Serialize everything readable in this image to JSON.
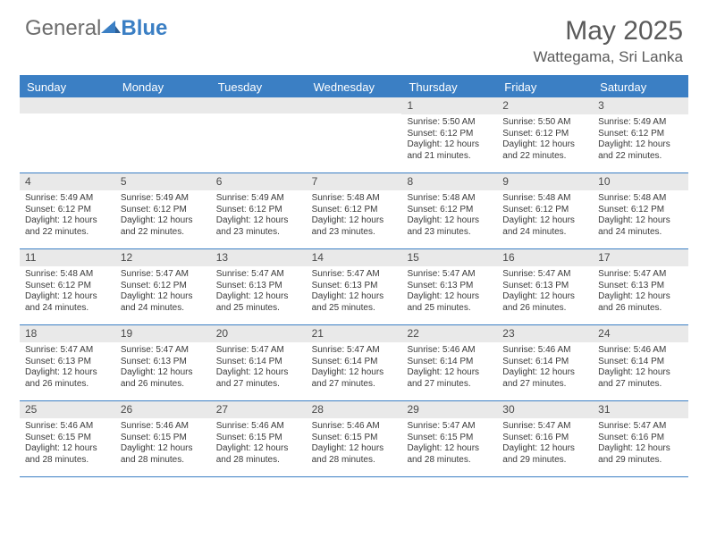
{
  "logo": {
    "general": "General",
    "blue": "Blue"
  },
  "title": "May 2025",
  "location": "Wattegama, Sri Lanka",
  "colors": {
    "accent": "#3b7fc4",
    "header_text": "#5a5a5a",
    "daynum_bg": "#e9e9e9",
    "body_text": "#3a3a3a",
    "logo_gray": "#6d6d6d"
  },
  "day_names": [
    "Sunday",
    "Monday",
    "Tuesday",
    "Wednesday",
    "Thursday",
    "Friday",
    "Saturday"
  ],
  "weeks": [
    [
      {
        "n": "",
        "sunrise": "",
        "sunset": "",
        "daylight": ""
      },
      {
        "n": "",
        "sunrise": "",
        "sunset": "",
        "daylight": ""
      },
      {
        "n": "",
        "sunrise": "",
        "sunset": "",
        "daylight": ""
      },
      {
        "n": "",
        "sunrise": "",
        "sunset": "",
        "daylight": ""
      },
      {
        "n": "1",
        "sunrise": "5:50 AM",
        "sunset": "6:12 PM",
        "daylight": "12 hours and 21 minutes."
      },
      {
        "n": "2",
        "sunrise": "5:50 AM",
        "sunset": "6:12 PM",
        "daylight": "12 hours and 22 minutes."
      },
      {
        "n": "3",
        "sunrise": "5:49 AM",
        "sunset": "6:12 PM",
        "daylight": "12 hours and 22 minutes."
      }
    ],
    [
      {
        "n": "4",
        "sunrise": "5:49 AM",
        "sunset": "6:12 PM",
        "daylight": "12 hours and 22 minutes."
      },
      {
        "n": "5",
        "sunrise": "5:49 AM",
        "sunset": "6:12 PM",
        "daylight": "12 hours and 22 minutes."
      },
      {
        "n": "6",
        "sunrise": "5:49 AM",
        "sunset": "6:12 PM",
        "daylight": "12 hours and 23 minutes."
      },
      {
        "n": "7",
        "sunrise": "5:48 AM",
        "sunset": "6:12 PM",
        "daylight": "12 hours and 23 minutes."
      },
      {
        "n": "8",
        "sunrise": "5:48 AM",
        "sunset": "6:12 PM",
        "daylight": "12 hours and 23 minutes."
      },
      {
        "n": "9",
        "sunrise": "5:48 AM",
        "sunset": "6:12 PM",
        "daylight": "12 hours and 24 minutes."
      },
      {
        "n": "10",
        "sunrise": "5:48 AM",
        "sunset": "6:12 PM",
        "daylight": "12 hours and 24 minutes."
      }
    ],
    [
      {
        "n": "11",
        "sunrise": "5:48 AM",
        "sunset": "6:12 PM",
        "daylight": "12 hours and 24 minutes."
      },
      {
        "n": "12",
        "sunrise": "5:47 AM",
        "sunset": "6:12 PM",
        "daylight": "12 hours and 24 minutes."
      },
      {
        "n": "13",
        "sunrise": "5:47 AM",
        "sunset": "6:13 PM",
        "daylight": "12 hours and 25 minutes."
      },
      {
        "n": "14",
        "sunrise": "5:47 AM",
        "sunset": "6:13 PM",
        "daylight": "12 hours and 25 minutes."
      },
      {
        "n": "15",
        "sunrise": "5:47 AM",
        "sunset": "6:13 PM",
        "daylight": "12 hours and 25 minutes."
      },
      {
        "n": "16",
        "sunrise": "5:47 AM",
        "sunset": "6:13 PM",
        "daylight": "12 hours and 26 minutes."
      },
      {
        "n": "17",
        "sunrise": "5:47 AM",
        "sunset": "6:13 PM",
        "daylight": "12 hours and 26 minutes."
      }
    ],
    [
      {
        "n": "18",
        "sunrise": "5:47 AM",
        "sunset": "6:13 PM",
        "daylight": "12 hours and 26 minutes."
      },
      {
        "n": "19",
        "sunrise": "5:47 AM",
        "sunset": "6:13 PM",
        "daylight": "12 hours and 26 minutes."
      },
      {
        "n": "20",
        "sunrise": "5:47 AM",
        "sunset": "6:14 PM",
        "daylight": "12 hours and 27 minutes."
      },
      {
        "n": "21",
        "sunrise": "5:47 AM",
        "sunset": "6:14 PM",
        "daylight": "12 hours and 27 minutes."
      },
      {
        "n": "22",
        "sunrise": "5:46 AM",
        "sunset": "6:14 PM",
        "daylight": "12 hours and 27 minutes."
      },
      {
        "n": "23",
        "sunrise": "5:46 AM",
        "sunset": "6:14 PM",
        "daylight": "12 hours and 27 minutes."
      },
      {
        "n": "24",
        "sunrise": "5:46 AM",
        "sunset": "6:14 PM",
        "daylight": "12 hours and 27 minutes."
      }
    ],
    [
      {
        "n": "25",
        "sunrise": "5:46 AM",
        "sunset": "6:15 PM",
        "daylight": "12 hours and 28 minutes."
      },
      {
        "n": "26",
        "sunrise": "5:46 AM",
        "sunset": "6:15 PM",
        "daylight": "12 hours and 28 minutes."
      },
      {
        "n": "27",
        "sunrise": "5:46 AM",
        "sunset": "6:15 PM",
        "daylight": "12 hours and 28 minutes."
      },
      {
        "n": "28",
        "sunrise": "5:46 AM",
        "sunset": "6:15 PM",
        "daylight": "12 hours and 28 minutes."
      },
      {
        "n": "29",
        "sunrise": "5:47 AM",
        "sunset": "6:15 PM",
        "daylight": "12 hours and 28 minutes."
      },
      {
        "n": "30",
        "sunrise": "5:47 AM",
        "sunset": "6:16 PM",
        "daylight": "12 hours and 29 minutes."
      },
      {
        "n": "31",
        "sunrise": "5:47 AM",
        "sunset": "6:16 PM",
        "daylight": "12 hours and 29 minutes."
      }
    ]
  ],
  "labels": {
    "sunrise": "Sunrise:",
    "sunset": "Sunset:",
    "daylight": "Daylight:"
  }
}
